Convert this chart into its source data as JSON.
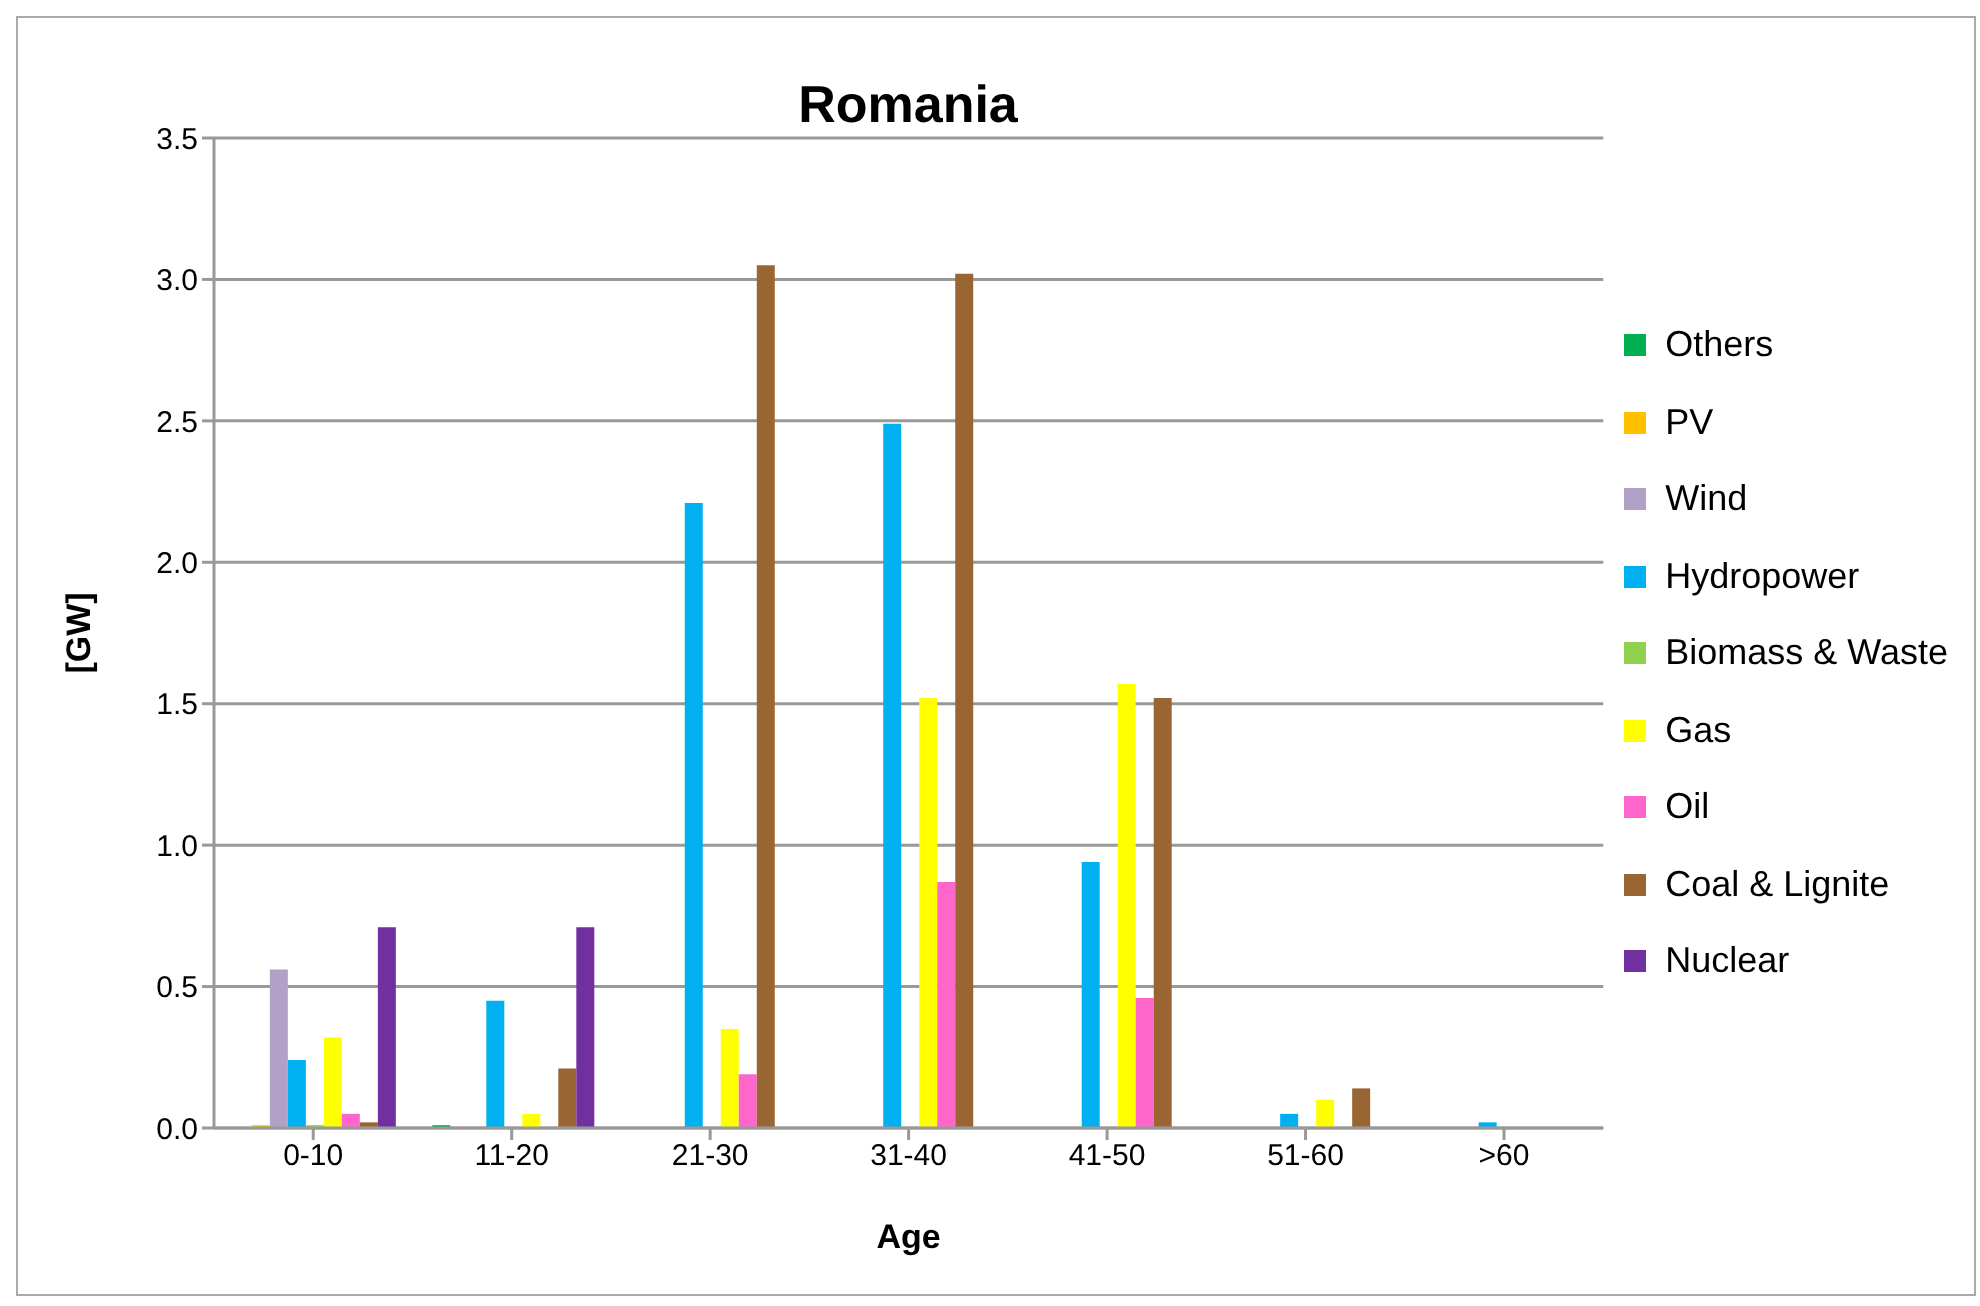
{
  "chart_data": {
    "type": "bar",
    "title": "Romania",
    "xlabel": "Age",
    "ylabel": "[GW]",
    "categories": [
      "0-10",
      "11-20",
      "21-30",
      "31-40",
      "41-50",
      "51-60",
      ">60"
    ],
    "series": [
      {
        "name": "Others",
        "color": "#00b050",
        "values": [
          0,
          0.01,
          0,
          0,
          0,
          0,
          0
        ]
      },
      {
        "name": "PV",
        "color": "#ffc000",
        "values": [
          0.01,
          0,
          0,
          0,
          0,
          0,
          0
        ]
      },
      {
        "name": "Wind",
        "color": "#b2a1c7",
        "values": [
          0.56,
          0,
          0,
          0,
          0,
          0,
          0
        ]
      },
      {
        "name": "Hydropower",
        "color": "#00b0f0",
        "values": [
          0.24,
          0.45,
          2.21,
          2.49,
          0.94,
          0.05,
          0.02
        ]
      },
      {
        "name": "Biomass & Waste",
        "color": "#92d050",
        "values": [
          0.01,
          0,
          0,
          0,
          0,
          0,
          0
        ]
      },
      {
        "name": "Gas",
        "color": "#ffff00",
        "values": [
          0.32,
          0.05,
          0.35,
          1.52,
          1.57,
          0.1,
          0
        ]
      },
      {
        "name": "Oil",
        "color": "#ff66cc",
        "values": [
          0.05,
          0,
          0.19,
          0.87,
          0.46,
          0,
          0
        ]
      },
      {
        "name": "Coal & Lignite",
        "color": "#996633",
        "values": [
          0.02,
          0.21,
          3.05,
          3.02,
          1.52,
          0.14,
          0
        ]
      },
      {
        "name": "Nuclear",
        "color": "#7030a0",
        "values": [
          0.71,
          0.71,
          0,
          0,
          0,
          0,
          0
        ]
      }
    ],
    "ylim": [
      0,
      3.5
    ],
    "yticks": [
      {
        "value": 0,
        "label": "0.0"
      },
      0.5,
      {
        "value": 1,
        "label": "1.0"
      },
      1.5,
      {
        "value": 2,
        "label": "2.0"
      },
      2.5,
      {
        "value": 3,
        "label": "3.0"
      },
      3.5
    ],
    "grid": "y",
    "legend": "right"
  }
}
